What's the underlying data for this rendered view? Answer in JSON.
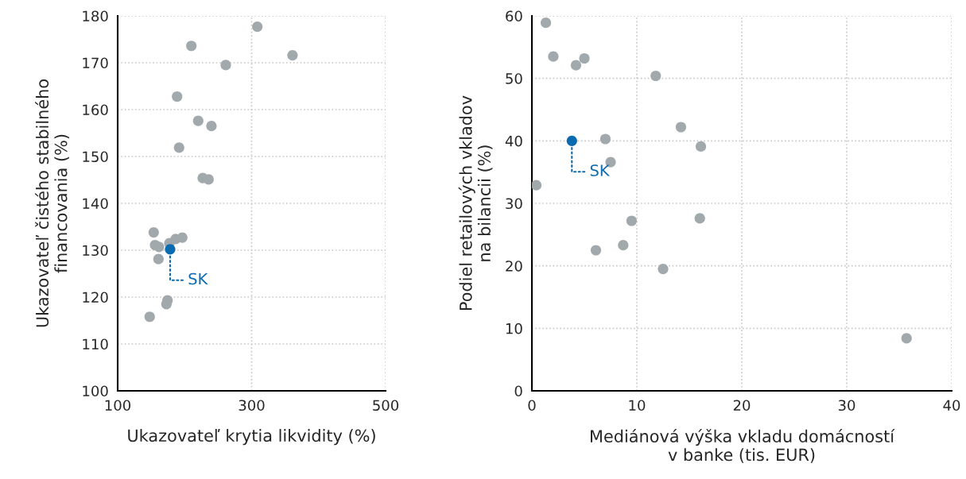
{
  "chart_data": [
    {
      "type": "scatter",
      "xlabel": "Ukazovateľ krytia likvidity (%)",
      "ylabel": "Ukazovateľ čistého stabilného\nfinancovania (%)",
      "xlim": [
        100,
        500
      ],
      "ylim": [
        100,
        180
      ],
      "xticks": [
        100,
        300,
        500
      ],
      "yticks": [
        100,
        110,
        120,
        130,
        140,
        150,
        160,
        170,
        180
      ],
      "grid": true,
      "marker": "circle",
      "series": [
        {
          "color": "#a2a9ad",
          "x": [
            308.5,
            210,
            361,
            261.4,
            188.7,
            220.2,
            240,
            191.7,
            227,
            235.7,
            153.8,
            155.8,
            161.7,
            160.9,
            177.2,
            186.6,
            196.5,
            174.4,
            172.8,
            147.8
          ],
          "values": [
            177.7,
            173.6,
            171.6,
            169.5,
            162.8,
            157.6,
            156.5,
            151.9,
            145.4,
            145.1,
            133.8,
            131.1,
            130.7,
            128.1,
            131.5,
            132.4,
            132.7,
            119.3,
            118.5,
            115.8
          ]
        },
        {
          "color": "#0b6bb0",
          "x": [
            178.3
          ],
          "values": [
            130.2
          ]
        }
      ],
      "annotations": [
        {
          "text": "SK",
          "x": 178.3,
          "y": 130.2
        }
      ]
    },
    {
      "type": "scatter",
      "xlabel": "Mediánová výška vkladu domácností\nv banke (tis. EUR)",
      "ylabel": "Podiel retailových vkladov\nna bilancii (%)",
      "xlim": [
        0,
        40
      ],
      "ylim": [
        0,
        60
      ],
      "xticks": [
        0,
        10,
        20,
        30,
        40
      ],
      "yticks": [
        0,
        10,
        20,
        30,
        40,
        50,
        60
      ],
      "grid": true,
      "marker": "circle",
      "series": [
        {
          "color": "#a2a9ad",
          "x": [
            1.33,
            2.04,
            4.2,
            5.0,
            11.8,
            14.2,
            16.1,
            7.0,
            7.5,
            0.42,
            16.0,
            9.5,
            8.7,
            6.1,
            12.5,
            35.7
          ],
          "values": [
            58.9,
            53.5,
            52.1,
            53.2,
            50.4,
            42.2,
            39.1,
            40.3,
            36.6,
            32.9,
            27.6,
            27.2,
            23.3,
            22.5,
            19.5,
            8.4
          ]
        },
        {
          "color": "#0b6bb0",
          "x": [
            3.81
          ],
          "values": [
            40.0
          ]
        }
      ],
      "annotations": [
        {
          "text": "SK",
          "x": 3.81,
          "y": 40.0
        }
      ]
    }
  ]
}
